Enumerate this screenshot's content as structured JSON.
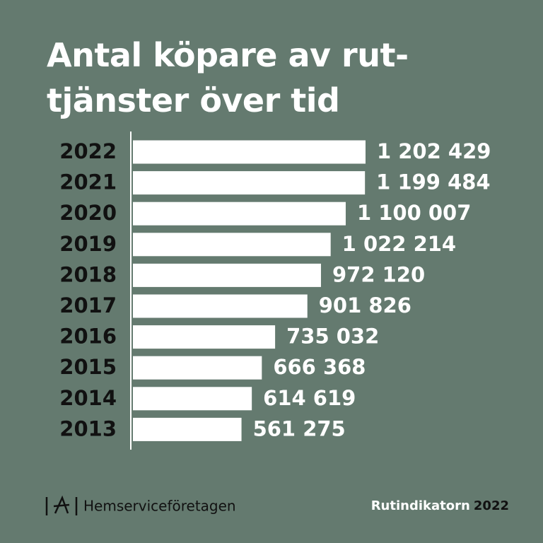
{
  "chart_data": {
    "type": "bar",
    "orientation": "horizontal",
    "title": "Antal köpare av rut-tjänster över tid",
    "categories": [
      "2022",
      "2021",
      "2020",
      "2019",
      "2018",
      "2017",
      "2016",
      "2015",
      "2014",
      "2013"
    ],
    "values": [
      1202429,
      1199484,
      1100007,
      1022214,
      972120,
      901826,
      735032,
      666368,
      614619,
      561275
    ],
    "value_labels": [
      "1 202 429",
      "1 199 484",
      "1 100 007",
      "1 022 214",
      "972 120",
      "901 826",
      "735 032",
      "666 368",
      "614 619",
      "561 275"
    ],
    "color": "#ffffff",
    "xlim": [
      0,
      1250000
    ]
  },
  "footer": {
    "brand": "Hemserviceföretagen",
    "source_name": "Rutindikatorn",
    "source_year": "2022"
  }
}
